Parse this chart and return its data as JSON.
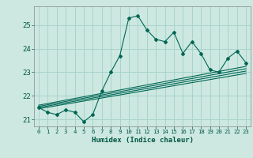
{
  "xlabel": "Humidex (Indice chaleur)",
  "ylabel": "",
  "background_color": "#cce8e0",
  "grid_color": "#a8d4cc",
  "line_color": "#006655",
  "xlim": [
    -0.5,
    23.5
  ],
  "ylim": [
    20.7,
    25.8
  ],
  "xtick_labels": [
    "0",
    "1",
    "2",
    "3",
    "4",
    "5",
    "6",
    "7",
    "8",
    "9",
    "10",
    "11",
    "12",
    "13",
    "14",
    "15",
    "16",
    "17",
    "18",
    "19",
    "20",
    "21",
    "22",
    "23"
  ],
  "yticks": [
    21,
    22,
    23,
    24,
    25
  ],
  "main_line_x": [
    0,
    1,
    2,
    3,
    4,
    5,
    6,
    7,
    8,
    9,
    10,
    11,
    12,
    13,
    14,
    15,
    16,
    17,
    18,
    19,
    20,
    21,
    22,
    23
  ],
  "main_line_y": [
    21.5,
    21.3,
    21.2,
    21.4,
    21.3,
    20.9,
    21.2,
    22.2,
    23.0,
    23.7,
    25.3,
    25.4,
    24.8,
    24.4,
    24.3,
    24.7,
    23.8,
    24.3,
    23.8,
    23.1,
    23.0,
    23.6,
    23.9,
    23.4
  ],
  "trend_lines": [
    {
      "x0": 0,
      "y0": 21.45,
      "x1": 23,
      "y1": 22.95
    },
    {
      "x0": 0,
      "y0": 21.5,
      "x1": 23,
      "y1": 23.05
    },
    {
      "x0": 0,
      "y0": 21.55,
      "x1": 23,
      "y1": 23.15
    },
    {
      "x0": 0,
      "y0": 21.6,
      "x1": 23,
      "y1": 23.25
    }
  ]
}
